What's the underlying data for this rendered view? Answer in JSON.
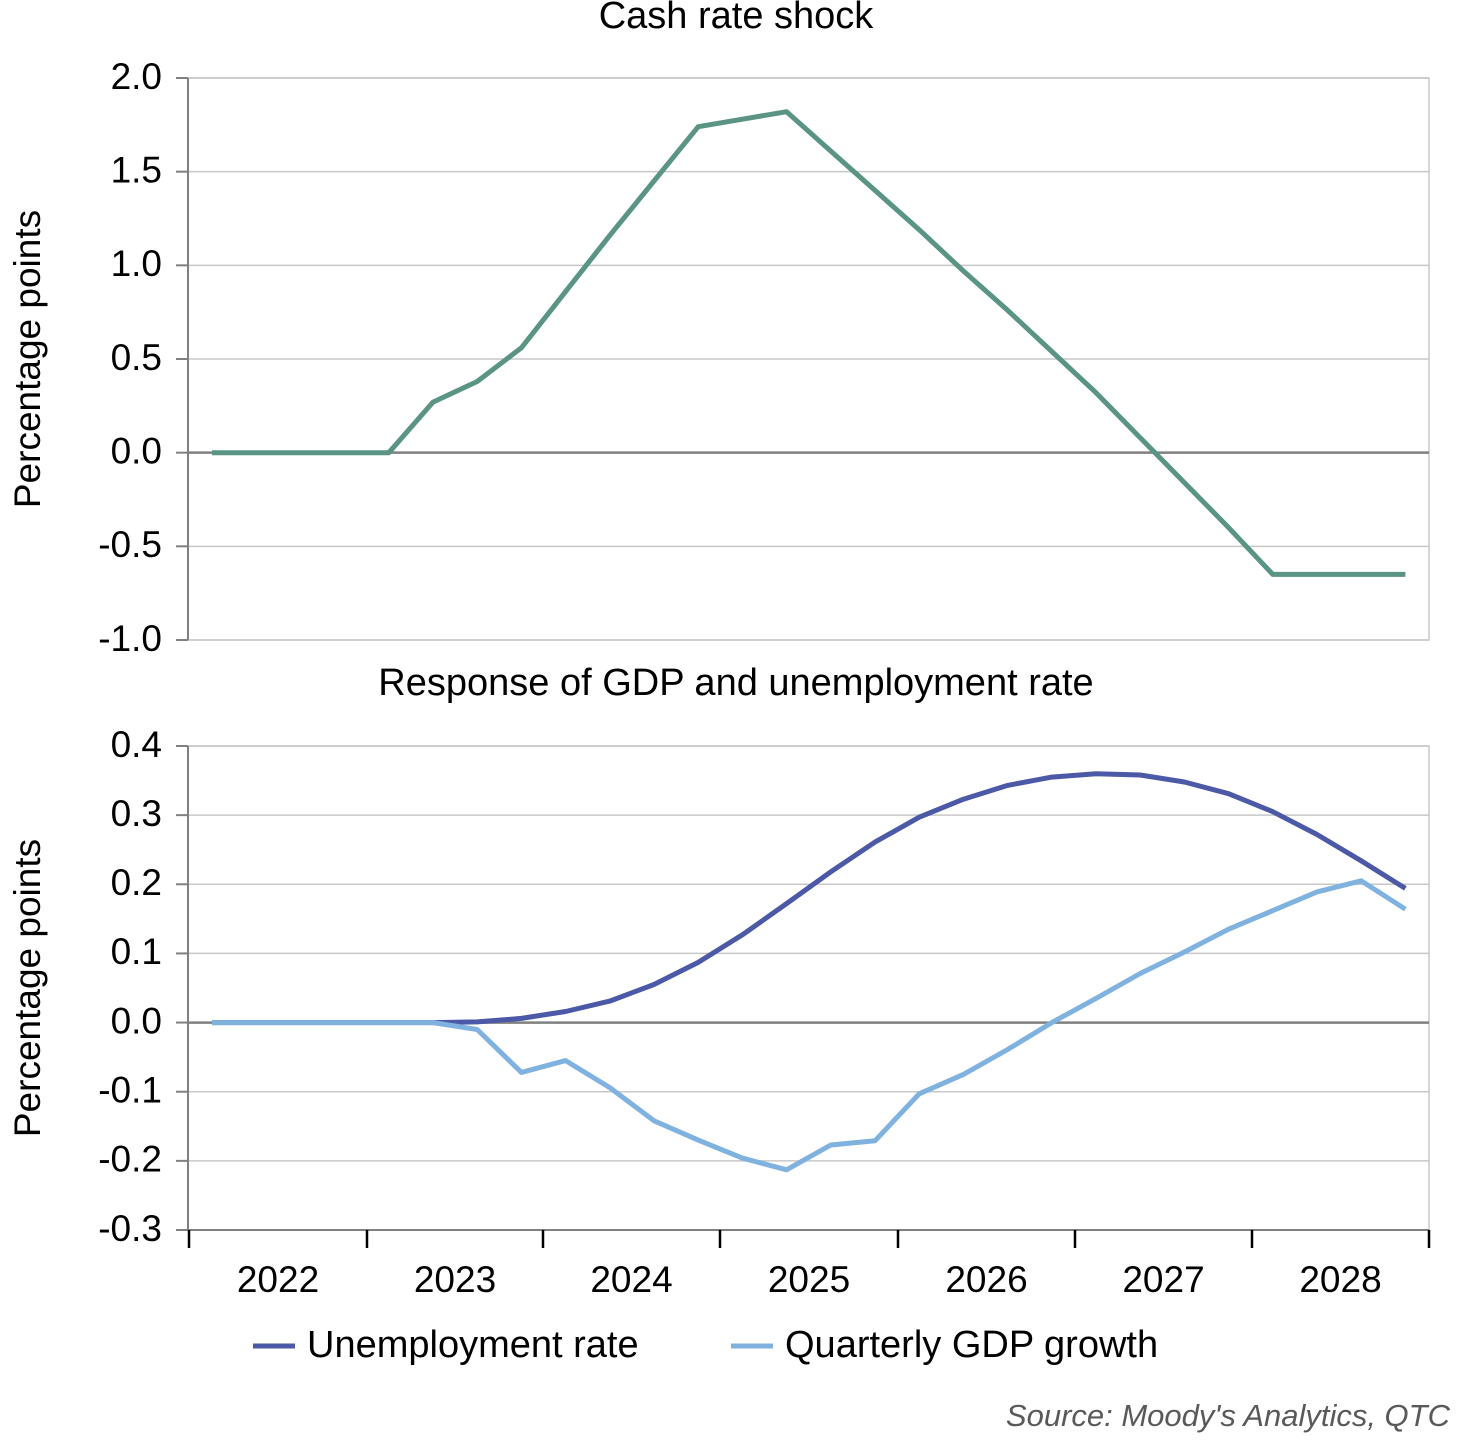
{
  "colors": {
    "cash_rate": "#5a9485",
    "unemployment": "#4b59a6",
    "gdp": "#7fb2df",
    "grid": "#c8c8c8",
    "zero_line": "#808080",
    "axis": "#808080"
  },
  "source_note": "Source: Moody's Analytics, QTC",
  "chart_data": [
    {
      "type": "line",
      "title": "Cash rate shock",
      "ylabel": "Percentage points",
      "xlabel": "",
      "ylim": [
        -1.0,
        2.0
      ],
      "yticks": [
        "2.0",
        "1.5",
        "1.0",
        "0.5",
        "0.0",
        "-0.5",
        "-1.0"
      ],
      "ytick_values": [
        2.0,
        1.5,
        1.0,
        0.5,
        0.0,
        -0.5,
        -1.0
      ],
      "grid": true,
      "x_quarters": [
        "2022Q1",
        "2022Q2",
        "2022Q3",
        "2022Q4",
        "2023Q1",
        "2023Q2",
        "2023Q3",
        "2023Q4",
        "2024Q1",
        "2024Q2",
        "2024Q3",
        "2024Q4",
        "2025Q1",
        "2025Q2",
        "2025Q3",
        "2025Q4",
        "2026Q1",
        "2026Q2",
        "2026Q3",
        "2026Q4",
        "2027Q1",
        "2027Q2",
        "2027Q3",
        "2027Q4",
        "2028Q1",
        "2028Q2",
        "2028Q3",
        "2028Q4"
      ],
      "series": [
        {
          "name": "",
          "color_key": "cash_rate",
          "values": [
            0,
            0,
            0,
            0,
            0,
            0.27,
            0.38,
            0.56,
            0.86,
            1.16,
            1.45,
            1.74,
            1.78,
            1.82,
            1.61,
            1.4,
            1.19,
            0.97,
            0.76,
            0.54,
            0.32,
            0.08,
            -0.16,
            -0.4,
            -0.65,
            -0.65,
            -0.65,
            -0.65
          ]
        }
      ]
    },
    {
      "type": "line",
      "title": "Response of GDP and unemployment rate",
      "ylabel": "Percentage points",
      "xlabel": "",
      "ylim": [
        -0.3,
        0.4
      ],
      "yticks": [
        "0.4",
        "0.3",
        "0.2",
        "0.1",
        "0.0",
        "-0.1",
        "-0.2",
        "-0.3"
      ],
      "ytick_values": [
        0.4,
        0.3,
        0.2,
        0.1,
        0.0,
        -0.1,
        -0.2,
        -0.3
      ],
      "grid": true,
      "x_year_labels": [
        "2022",
        "2023",
        "2024",
        "2025",
        "2026",
        "2027",
        "2028"
      ],
      "legend_position": "bottom",
      "series": [
        {
          "name": "Unemployment rate",
          "color_key": "unemployment",
          "values": [
            0,
            0,
            0,
            0,
            0,
            0,
            0.001,
            0.006,
            0.016,
            0.031,
            0.055,
            0.087,
            0.127,
            0.172,
            0.218,
            0.261,
            0.297,
            0.323,
            0.343,
            0.355,
            0.36,
            0.358,
            0.348,
            0.331,
            0.305,
            0.272,
            0.234,
            0.194
          ]
        },
        {
          "name": "Quarterly GDP growth",
          "color_key": "gdp",
          "values": [
            0,
            0,
            0,
            0,
            0,
            0,
            -0.01,
            -0.072,
            -0.055,
            -0.094,
            -0.142,
            -0.17,
            -0.196,
            -0.213,
            -0.177,
            -0.171,
            -0.103,
            -0.075,
            -0.039,
            0.0,
            0.035,
            0.071,
            0.102,
            0.135,
            0.162,
            0.189,
            0.205,
            0.164
          ]
        }
      ]
    }
  ]
}
